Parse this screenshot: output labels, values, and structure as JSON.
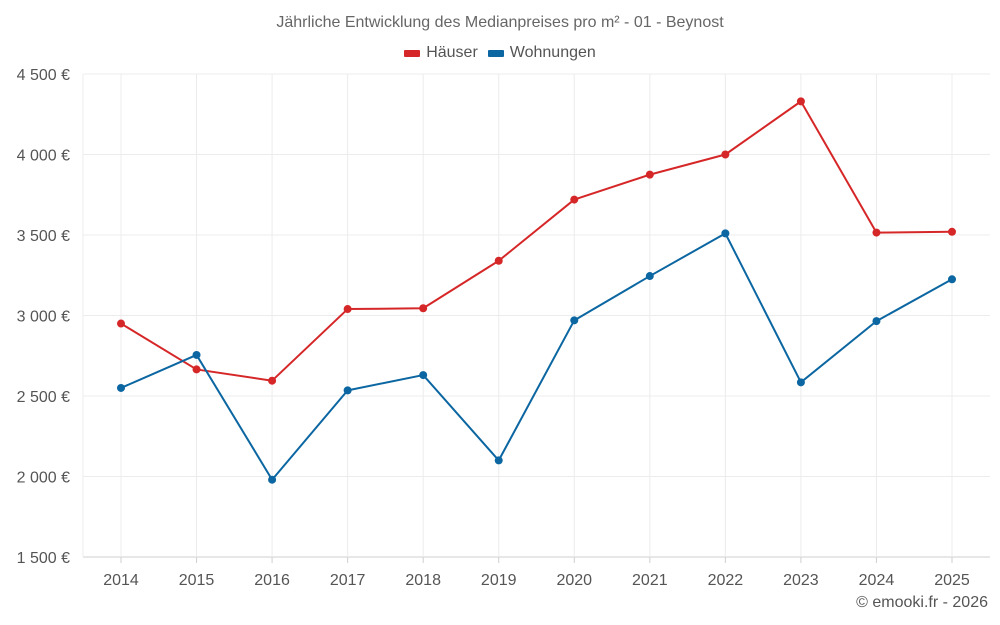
{
  "chart_data": {
    "type": "line",
    "title": "Jährliche Entwicklung des Medianpreises pro m² - 01 - Beynost",
    "categories": [
      "2014",
      "2015",
      "2016",
      "2017",
      "2018",
      "2019",
      "2020",
      "2021",
      "2022",
      "2023",
      "2024",
      "2025"
    ],
    "yticks": [
      "1 500 €",
      "2 000 €",
      "2 500 €",
      "3 000 €",
      "3 500 €",
      "4 000 €",
      "4 500 €"
    ],
    "ytick_values": [
      1500,
      2000,
      2500,
      3000,
      3500,
      4000,
      4500
    ],
    "ylim": [
      1500,
      4500
    ],
    "grid": true,
    "legend_position": "top-center",
    "series": [
      {
        "name": "Häuser",
        "color": "#d62728",
        "values": [
          2950,
          2665,
          2595,
          3040,
          3045,
          3340,
          3720,
          3875,
          4000,
          4330,
          3515,
          3520
        ]
      },
      {
        "name": "Wohnungen",
        "color": "#0b66a1",
        "values": [
          2550,
          2755,
          1980,
          2535,
          2630,
          2100,
          2970,
          3245,
          3510,
          2585,
          2965,
          3225
        ]
      }
    ]
  },
  "credit": "© emooki.fr - 2026"
}
